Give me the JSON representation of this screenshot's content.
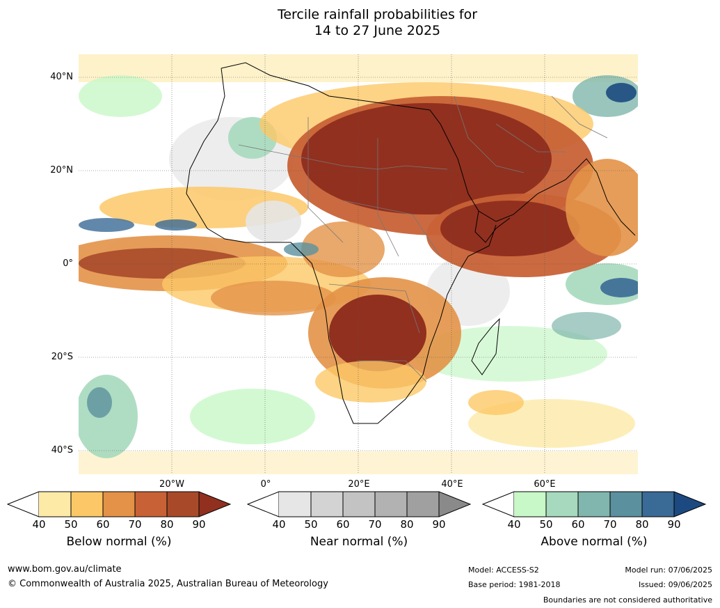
{
  "title_line1": "Tercile rainfall probabilities for",
  "title_line2": "14 to 27 June 2025",
  "lat_labels": [
    "40°N",
    "20°N",
    "0°",
    "20°S",
    "40°S"
  ],
  "lon_labels": [
    "20°W",
    "0°",
    "20°E",
    "40°E",
    "60°E"
  ],
  "colorbars": [
    {
      "title": "Below normal (%)",
      "ticks": [
        "40",
        "50",
        "60",
        "70",
        "80",
        "90"
      ],
      "colors": [
        "#fdeaa7",
        "#fcc867",
        "#e39247",
        "#c86236",
        "#a84a2a",
        "#91301f"
      ]
    },
    {
      "title": "Near normal (%)",
      "ticks": [
        "40",
        "50",
        "60",
        "70",
        "80",
        "90"
      ],
      "colors": [
        "#e6e6e6",
        "#d3d3d3",
        "#c3c3c3",
        "#b2b2b2",
        "#a0a0a0",
        "#8a8a8a"
      ]
    },
    {
      "title": "Above normal (%)",
      "ticks": [
        "40",
        "50",
        "60",
        "70",
        "80",
        "90"
      ],
      "colors": [
        "#c8f7c8",
        "#a6d9bd",
        "#80b6ad",
        "#5b919e",
        "#3a6a96",
        "#1c4a80"
      ]
    }
  ],
  "footer": {
    "website": "www.bom.gov.au/climate",
    "copyright": "© Commonwealth of Australia 2025, Australian Bureau of Meteorology",
    "model": "Model: ACCESS-S2",
    "base_period": "Base period: 1981-2018",
    "model_run": "Model run: 07/06/2025",
    "issued": "Issued: 09/06/2025",
    "disclaimer": "Boundaries are not considered authoritative"
  }
}
